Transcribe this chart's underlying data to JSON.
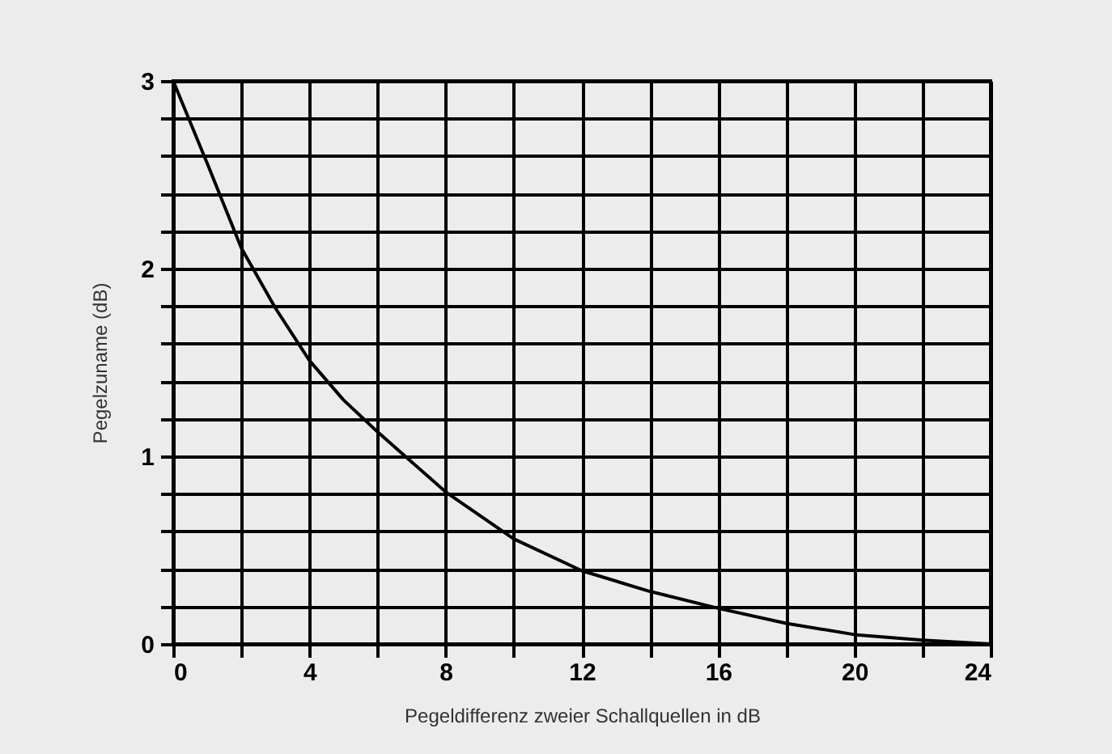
{
  "chart_data": {
    "type": "line",
    "xlabel": "Pegeldifferenz zweier Schallquellen in dB",
    "ylabel": "Pegelzuname (dB)",
    "x": [
      0,
      1,
      2,
      3,
      4,
      5,
      6,
      7,
      8,
      10,
      12,
      14,
      16,
      18,
      20,
      22,
      24
    ],
    "series": [
      {
        "color": "#000000",
        "values": [
          3,
          2.56,
          2.11,
          1.79,
          1.51,
          1.3,
          1.13,
          0.97,
          0.81,
          0.56,
          0.39,
          0.28,
          0.19,
          0.11,
          0.05,
          0.02,
          0
        ]
      }
    ],
    "xlim": [
      0,
      24
    ],
    "ylim": [
      0,
      3
    ],
    "xticks": [
      0,
      {
        "value": 2,
        "label": null
      },
      4,
      {
        "value": 6,
        "label": null
      },
      8,
      {
        "value": 10,
        "label": null
      },
      12,
      {
        "value": 14,
        "label": null
      },
      16,
      {
        "value": 18,
        "label": null
      },
      20,
      {
        "value": 22,
        "label": null
      },
      24
    ],
    "yticks": [
      0,
      {
        "value": 0.2,
        "label": null
      },
      {
        "value": 0.4,
        "label": null
      },
      {
        "value": 0.6,
        "label": null
      },
      {
        "value": 0.8,
        "label": null
      },
      1,
      {
        "value": 1.2,
        "label": null
      },
      {
        "value": 1.4,
        "label": null
      },
      {
        "value": 1.6,
        "label": null
      },
      {
        "value": 1.8,
        "label": null
      },
      2,
      {
        "value": 2.2,
        "label": null
      },
      {
        "value": 2.4,
        "label": null
      },
      {
        "value": 2.6,
        "label": null
      },
      {
        "value": 2.8,
        "label": null
      },
      3
    ],
    "grid": true,
    "legend": false,
    "marker": "none",
    "line_style": "solid"
  }
}
